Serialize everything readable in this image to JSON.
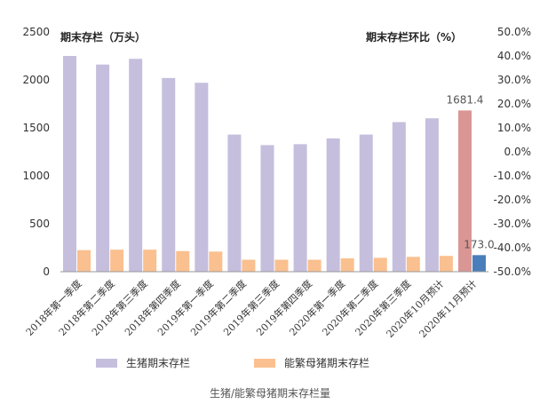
{
  "chart_data": {
    "type": "bar",
    "title_left": "期末存栏（万头）",
    "title_right": "期末存栏环比（%）",
    "caption": "生猪/能繁母猪期末存栏量",
    "categories": [
      "2018年第一季度",
      "2018年第二季度",
      "2018年第三季度",
      "2018年第四季度",
      "2019年第一季度",
      "2019年第二季度",
      "2019年第三季度",
      "2019年第四季度",
      "2020年第一季度",
      "2020年第二季度",
      "2020年第三季度",
      "2020年10月预计",
      "2020年11月预计"
    ],
    "series": [
      {
        "name": "生猪期末存栏",
        "color": "#c5bedd",
        "highlight_color": "#d99694",
        "values": [
          2250,
          2160,
          2220,
          2020,
          1970,
          1430,
          1320,
          1330,
          1390,
          1430,
          1560,
          1600,
          1681.4
        ]
      },
      {
        "name": "能繁母猪期末存栏",
        "color": "#fac08f",
        "highlight_color": "#4a7ebb",
        "values": [
          225,
          230,
          230,
          215,
          210,
          125,
          125,
          125,
          140,
          145,
          155,
          165,
          173.0
        ]
      }
    ],
    "data_labels": {
      "primary": "1681.4",
      "secondary": "173.0"
    },
    "y_left": {
      "min": 0,
      "max": 2500,
      "ticks": [
        "0",
        "500",
        "1000",
        "1500",
        "2000",
        "2500"
      ]
    },
    "y_right": {
      "min": -50,
      "max": 50,
      "ticks": [
        "-50.0%",
        "-40.0%",
        "-30.0%",
        "-20.0%",
        "-10.0%",
        "0.0%",
        "10.0%",
        "20.0%",
        "30.0%",
        "40.0%",
        "50.0%"
      ]
    },
    "legend_position": "bottom"
  }
}
